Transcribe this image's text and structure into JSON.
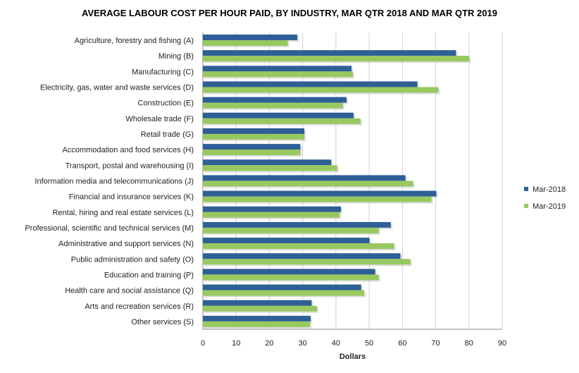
{
  "chart_data": {
    "type": "bar",
    "orientation": "horizontal",
    "title": "AVERAGE LABOUR COST PER HOUR PAID, BY INDUSTRY, MAR QTR 2018 AND MAR QTR 2019",
    "xlabel": "Dollars",
    "ylabel": "",
    "xlim": [
      0,
      90
    ],
    "xticks": [
      0,
      10,
      20,
      30,
      40,
      50,
      60,
      70,
      80,
      90
    ],
    "grid": true,
    "legend_position": "right",
    "categories": [
      "Agriculture, forestry and fishing (A)",
      "Mining (B)",
      "Manufacturing (C)",
      "Electricity, gas, water and waste services (D)",
      "Construction (E)",
      "Wholesale trade (F)",
      "Retail trade (G)",
      "Accommodation and food services (H)",
      "Transport, postal and warehousing (I)",
      "Information media and telecommunications (J)",
      "Financial and insurance services (K)",
      "Rental, hiring and real estate services (L)",
      "Professional, scientific and technical services (M)",
      "Administrative and support services (N)",
      "Public administration and safety (O)",
      "Education and training (P)",
      "Health care and social assistance (Q)",
      "Arts and recreation services (R)",
      "Other services (S)"
    ],
    "series": [
      {
        "name": "Mar-2018",
        "color": "#2E5F96",
        "values": [
          28.4,
          76.1,
          44.7,
          64.5,
          43.2,
          45.3,
          30.5,
          29.3,
          38.6,
          60.9,
          70.2,
          41.5,
          56.5,
          50.1,
          59.4,
          51.8,
          47.6,
          32.7,
          32.4
        ]
      },
      {
        "name": "Mar-2019",
        "color": "#98C860",
        "values": [
          25.5,
          80.1,
          45.1,
          70.8,
          42.1,
          47.4,
          30.5,
          29.3,
          40.4,
          63.2,
          68.7,
          41.1,
          52.9,
          57.5,
          62.4,
          52.9,
          48.5,
          34.3,
          32.2
        ]
      }
    ]
  }
}
